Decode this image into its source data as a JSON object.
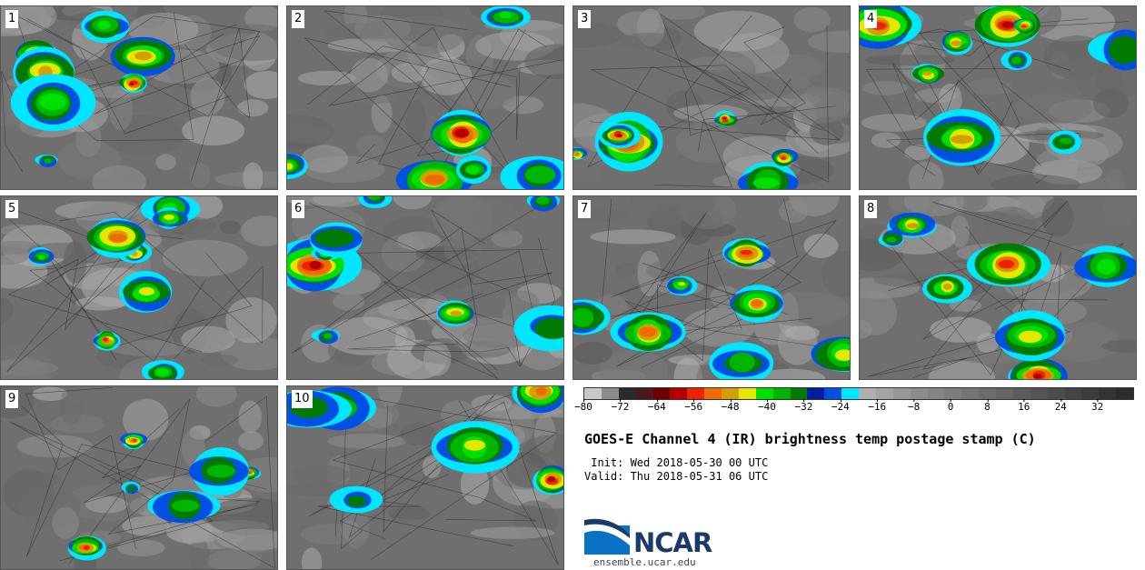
{
  "panels": [
    {
      "number": "1"
    },
    {
      "number": "2"
    },
    {
      "number": "3"
    },
    {
      "number": "4"
    },
    {
      "number": "5"
    },
    {
      "number": "6"
    },
    {
      "number": "7"
    },
    {
      "number": "8"
    },
    {
      "number": "9"
    },
    {
      "number": "10"
    }
  ],
  "colorbar": {
    "colors": [
      "#c8c8c8",
      "#8c8c8c",
      "#2a2a2a",
      "#4a1a1a",
      "#6e0000",
      "#b40000",
      "#ee2200",
      "#f06c00",
      "#d2a000",
      "#e6e600",
      "#00e000",
      "#00b400",
      "#007a00",
      "#001ea0",
      "#0050e6",
      "#00e6ff",
      "#b0b0b0",
      "#a4a4a4",
      "#989898",
      "#8c8c8c",
      "#848484",
      "#7c7c7c",
      "#747474",
      "#6c6c6c",
      "#646464",
      "#5c5c5c",
      "#545454",
      "#4c4c4c",
      "#444444",
      "#3c3c3c",
      "#343434",
      "#2c2c2c"
    ],
    "min": -80,
    "max": 40,
    "tick_values": [
      "-80",
      "-72",
      "-64",
      "-56",
      "-48",
      "-40",
      "-32",
      "-24",
      "-16",
      "-8",
      "0",
      "8",
      "16",
      "24",
      "32"
    ],
    "tick_labels": [
      "−80",
      "−72",
      "−64",
      "−56",
      "−48",
      "−40",
      "−32",
      "−24",
      "−16",
      "−8",
      "0",
      "8",
      "16",
      "24",
      "32"
    ]
  },
  "title": "GOES-E Channel 4 (IR) brightness temp postage stamp (C)",
  "init": " Init: Wed 2018-05-30 00 UTC",
  "valid": "Valid: Thu 2018-05-31 06 UTC",
  "logo_text": "NCAR",
  "site": "ensemble.ucar.edu"
}
